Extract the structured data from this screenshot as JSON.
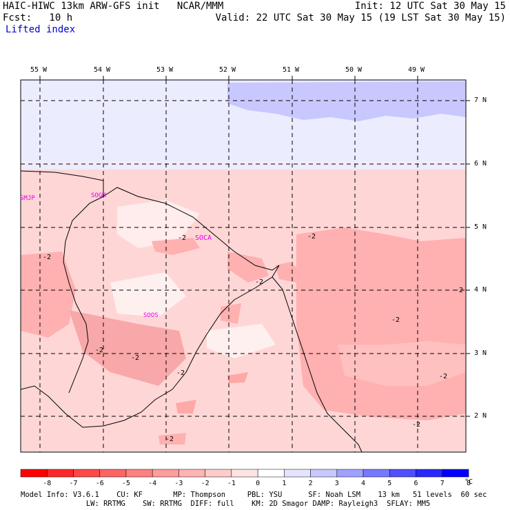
{
  "header": {
    "line1_left": "HAIC-HIWC 13km ARW-GFS init   NCAR/MMM",
    "line1_right": "Init: 12 UTC Sat 30 May 15",
    "line2_left": "Fcst:   10 h",
    "line2_right": "Valid: 22 UTC Sat 30 May 15 (19 LST Sat 30 May 15)",
    "field": "Lifted index"
  },
  "map": {
    "lon_labels": [
      "55 W",
      "54 W",
      "53 W",
      "52 W",
      "51 W",
      "50 W",
      "49 W"
    ],
    "lat_labels": [
      "7 N",
      "6 N",
      "5 N",
      "4 N",
      "3 N",
      "2 N"
    ],
    "stations": [
      "SMJP",
      "SOGM",
      "SOCA",
      "SOOS"
    ],
    "contour_label": "-2",
    "colors": {
      "stable_blue": "#c8c8ff",
      "light_blue": "#e8e8ff",
      "pink_light": "#ffd0d0",
      "pink_mid": "#ffb0b0",
      "pink_dark": "#f89898",
      "near_zero": "#ffe8e8"
    }
  },
  "colorbar": {
    "ticks": [
      "-8",
      "-7",
      "-6",
      "-5",
      "-4",
      "-3",
      "-2",
      "-1",
      "0",
      "1",
      "2",
      "3",
      "4",
      "5",
      "6",
      "7",
      "8"
    ],
    "unit": "°C",
    "colors": [
      "#ff0000",
      "#ff2828",
      "#ff4848",
      "#ff6464",
      "#ff8080",
      "#ff9c9c",
      "#ffb4b4",
      "#ffcccc",
      "#ffe4e4",
      "#ffffff",
      "#e4e4ff",
      "#c8c8ff",
      "#a0a0ff",
      "#7878ff",
      "#5050ff",
      "#2828ff",
      "#0000ff"
    ]
  },
  "footer": {
    "line1": "Model Info: V3.6.1    CU: KF       MP: Thompson     PBL: YSU      SF: Noah LSM    13 km   51 levels  60 sec",
    "line2": "               LW: RRTMG    SW: RRTMG  DIFF: full    KM: 2D Smagor DAMP: Rayleigh3  SFLAY: MM5"
  }
}
